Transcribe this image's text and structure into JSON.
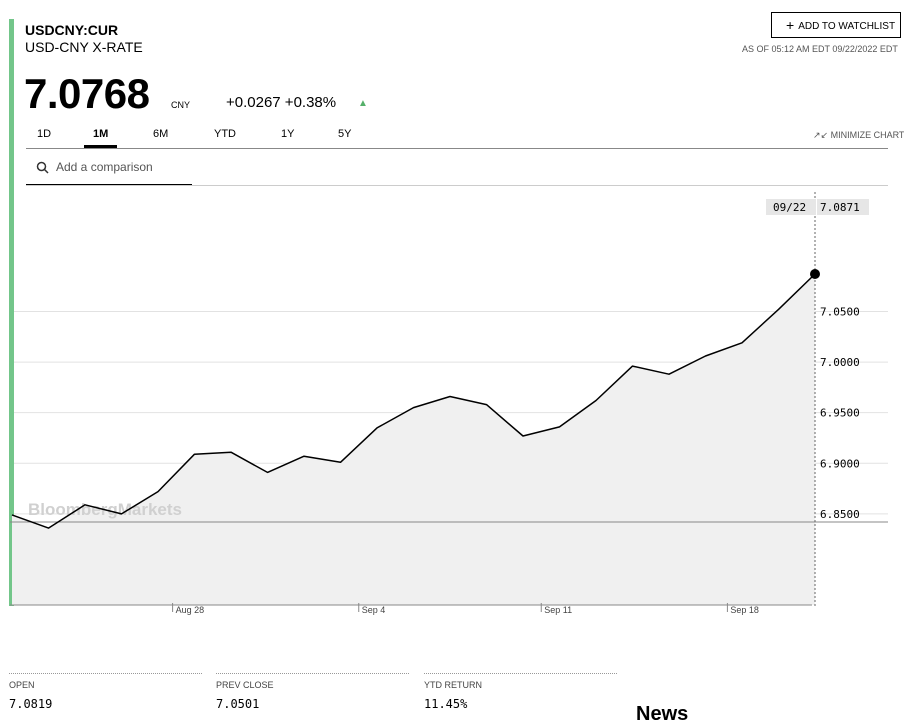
{
  "header": {
    "ticker": "USDCNY:CUR",
    "name": "USD-CNY X-RATE",
    "price": "7.0768",
    "currency": "CNY",
    "change": "+0.0267 +0.38%",
    "watchlist_label": "ADD TO WATCHLIST",
    "as_of": "AS OF 05:12 AM EDT 09/22/2022 EDT"
  },
  "tabs": [
    {
      "label": "1D"
    },
    {
      "label": "1M",
      "active": true
    },
    {
      "label": "6M"
    },
    {
      "label": "YTD"
    },
    {
      "label": "1Y"
    },
    {
      "label": "5Y"
    }
  ],
  "minimize_label": "MINIMIZE CHART",
  "compare": {
    "placeholder": "Add a comparison"
  },
  "watermark": "BloombergMarkets",
  "colors": {
    "accent": "#73c68a",
    "up": "#55b06a",
    "area": "#f0f0f0"
  },
  "chart_data": {
    "type": "area",
    "x_ticks": [
      "Aug 28",
      "Sep 4",
      "Sep 11",
      "Sep 18"
    ],
    "y_ticks": [
      "7.0500",
      "7.0000",
      "6.9500",
      "6.9000",
      "6.8500"
    ],
    "ylim": [
      6.76,
      7.17
    ],
    "tooltip": {
      "date": "09/22",
      "value": "7.0871"
    },
    "series": [
      {
        "values": [
          6.849,
          6.836,
          6.859,
          6.85,
          6.872,
          6.909,
          6.911,
          6.891,
          6.907,
          6.901,
          6.935,
          6.955,
          6.966,
          6.958,
          6.927,
          6.936,
          6.962,
          6.996,
          6.988,
          7.006,
          7.019,
          7.052,
          7.087
        ]
      }
    ]
  },
  "stats": [
    {
      "label": "OPEN",
      "value": "7.0819"
    },
    {
      "label": "PREV CLOSE",
      "value": "7.0501"
    },
    {
      "label": "YTD RETURN",
      "value": "11.45%"
    }
  ],
  "news_heading": "News"
}
